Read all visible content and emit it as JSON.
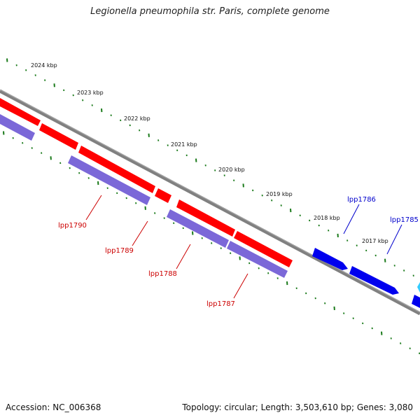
{
  "title": "Legionella pneumophila str. Paris, complete genome",
  "accession": "Accession: NC_006368",
  "summary": "Topology: circular; Length: 3,503,610 bp; Genes: 3,080",
  "colors": {
    "backbone": "#808080",
    "gene_red": "#ff0000",
    "gene_purple": "#7b68d8",
    "gene_blue": "#0000ee",
    "gene_cyan": "#33ccff",
    "tick": "#1a7a1a",
    "label_red": "#cc0000",
    "label_blue": "#0000cc"
  },
  "scale_labels": [
    "2024 kbp",
    "2023 kbp",
    "2022 kbp",
    "2021 kbp",
    "2020 kbp",
    "2019 kbp",
    "2018 kbp",
    "2017 kbp"
  ],
  "gene_labels": [
    "lpp1790",
    "lpp1789",
    "lpp1788",
    "lpp1787",
    "lpp1786",
    "lpp1785"
  ]
}
